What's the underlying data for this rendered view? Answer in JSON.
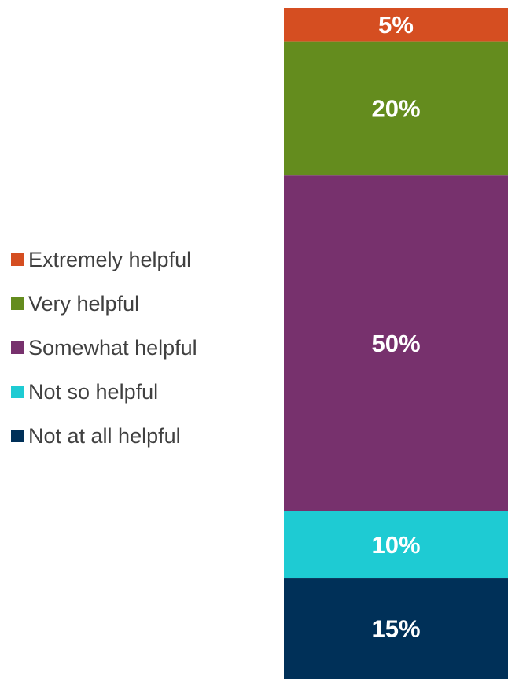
{
  "chart_data": {
    "type": "bar",
    "stacked": true,
    "orientation": "vertical",
    "categories": [
      ""
    ],
    "unit": "%",
    "ylim": [
      0,
      100
    ],
    "grid": false,
    "legend_position": "left",
    "series": [
      {
        "name": "Extremely helpful",
        "values": [
          5
        ],
        "color": "#D54E21",
        "data_label": "5%"
      },
      {
        "name": "Very helpful",
        "values": [
          20
        ],
        "color": "#648C1E",
        "data_label": "20%"
      },
      {
        "name": "Somewhat helpful",
        "values": [
          50
        ],
        "color": "#77316D",
        "data_label": "50%"
      },
      {
        "name": "Not so helpful",
        "values": [
          10
        ],
        "color": "#1ECBD3",
        "data_label": "10%"
      },
      {
        "name": "Not at all helpful",
        "values": [
          15
        ],
        "color": "#003058",
        "data_label": "15%"
      }
    ]
  }
}
